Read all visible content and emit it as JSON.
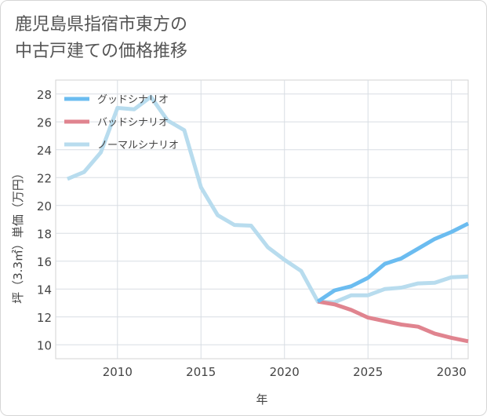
{
  "title_lines": [
    "鹿児島県指宿市東方の",
    "中古戸建ての価格推移"
  ],
  "chart_data": {
    "type": "line",
    "xlabel": "年",
    "ylabel": "坪（3.3㎡）単価（万円）",
    "xlim": [
      2006.3,
      2031
    ],
    "ylim": [
      9,
      29
    ],
    "xticks": [
      2010,
      2015,
      2020,
      2025,
      2030
    ],
    "yticks": [
      10,
      12,
      14,
      16,
      18,
      20,
      22,
      24,
      26,
      28
    ],
    "grid": true,
    "legend_position": "top-left",
    "series": [
      {
        "name": "グッドシナリオ",
        "color": "#6bbcf0",
        "x": [
          2022,
          2023,
          2024,
          2025,
          2026,
          2027,
          2028,
          2029,
          2030,
          2031
        ],
        "y": [
          13.1,
          13.9,
          14.2,
          14.8,
          15.8,
          16.2,
          16.9,
          17.6,
          18.1,
          18.7
        ]
      },
      {
        "name": "バッドシナリオ",
        "color": "#e0848f",
        "x": [
          2022,
          2023,
          2024,
          2025,
          2026,
          2027,
          2028,
          2029,
          2030,
          2031
        ],
        "y": [
          13.1,
          12.9,
          12.5,
          11.95,
          11.7,
          11.45,
          11.3,
          10.8,
          10.5,
          10.25
        ]
      },
      {
        "name": "ノーマルシナリオ",
        "color": "#b8dcee",
        "x": [
          2007,
          2008,
          2009,
          2010,
          2011,
          2012,
          2013,
          2014,
          2015,
          2016,
          2017,
          2018,
          2019,
          2020,
          2021,
          2022,
          2023,
          2024,
          2025,
          2026,
          2027,
          2028,
          2029,
          2030,
          2031
        ],
        "y": [
          21.9,
          22.4,
          23.8,
          27.0,
          26.9,
          27.8,
          26.1,
          25.4,
          21.3,
          19.3,
          18.6,
          18.55,
          17.0,
          16.1,
          15.3,
          13.1,
          13.05,
          13.55,
          13.55,
          14.0,
          14.1,
          14.4,
          14.45,
          14.85,
          14.9
        ]
      }
    ]
  }
}
